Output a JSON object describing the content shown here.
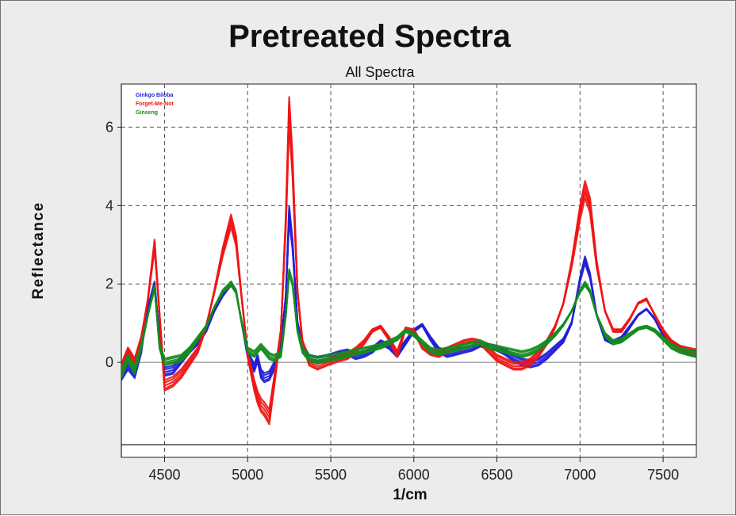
{
  "chart_data": {
    "type": "line",
    "title": "Pretreated Spectra",
    "subtitle": "All Spectra",
    "xlabel": "1/cm",
    "ylabel": "Reflectance",
    "xlim": [
      4240,
      7700
    ],
    "ylim": [
      -2.1,
      7.1
    ],
    "xticks": [
      4500,
      5000,
      5500,
      6000,
      6500,
      7000,
      7500
    ],
    "yticks": [
      0,
      2,
      4,
      6
    ],
    "grid": true,
    "legend_position": "top-left",
    "series": [
      {
        "name": "Ginkgo Biloba",
        "color": "#1f1fd6",
        "x": [
          4240,
          4280,
          4320,
          4360,
          4400,
          4440,
          4470,
          4500,
          4550,
          4600,
          4650,
          4700,
          4750,
          4800,
          4850,
          4900,
          4930,
          4960,
          5000,
          5040,
          5060,
          5080,
          5100,
          5130,
          5160,
          5200,
          5230,
          5250,
          5270,
          5300,
          5330,
          5370,
          5420,
          5480,
          5550,
          5600,
          5650,
          5700,
          5750,
          5800,
          5850,
          5900,
          5950,
          6000,
          6050,
          6100,
          6150,
          6200,
          6250,
          6300,
          6350,
          6400,
          6450,
          6500,
          6550,
          6600,
          6650,
          6700,
          6750,
          6800,
          6850,
          6900,
          6950,
          7000,
          7030,
          7060,
          7100,
          7150,
          7200,
          7250,
          7300,
          7350,
          7400,
          7450,
          7500,
          7550,
          7600,
          7650,
          7700
        ],
        "values": [
          -0.35,
          -0.1,
          -0.3,
          0.3,
          1.4,
          2.0,
          0.6,
          -0.25,
          -0.2,
          0.05,
          0.3,
          0.5,
          0.8,
          1.3,
          1.7,
          2.0,
          1.8,
          1.1,
          0.2,
          -0.15,
          0.1,
          -0.3,
          -0.4,
          -0.35,
          -0.1,
          0.4,
          1.7,
          3.8,
          3.0,
          1.0,
          0.4,
          0.1,
          0.05,
          0.1,
          0.2,
          0.25,
          0.15,
          0.2,
          0.3,
          0.5,
          0.4,
          0.2,
          0.5,
          0.8,
          0.95,
          0.6,
          0.3,
          0.2,
          0.25,
          0.3,
          0.35,
          0.45,
          0.4,
          0.35,
          0.25,
          0.1,
          0.0,
          -0.05,
          0.0,
          0.15,
          0.35,
          0.55,
          1.0,
          2.1,
          2.6,
          2.2,
          1.2,
          0.6,
          0.5,
          0.6,
          0.9,
          1.2,
          1.35,
          1.1,
          0.7,
          0.5,
          0.35,
          0.25,
          0.2
        ]
      },
      {
        "name": "Forget-Me-Not",
        "color": "#f01414",
        "x": [
          4240,
          4280,
          4320,
          4360,
          4400,
          4440,
          4470,
          4500,
          4550,
          4600,
          4650,
          4700,
          4750,
          4800,
          4850,
          4900,
          4930,
          4960,
          5000,
          5040,
          5060,
          5080,
          5100,
          5130,
          5160,
          5200,
          5230,
          5250,
          5270,
          5300,
          5330,
          5370,
          5420,
          5480,
          5550,
          5600,
          5650,
          5700,
          5750,
          5800,
          5850,
          5900,
          5950,
          6000,
          6050,
          6100,
          6150,
          6200,
          6250,
          6300,
          6350,
          6400,
          6450,
          6500,
          6550,
          6600,
          6650,
          6700,
          6750,
          6800,
          6850,
          6900,
          6950,
          7000,
          7030,
          7060,
          7100,
          7150,
          7200,
          7250,
          7300,
          7350,
          7400,
          7450,
          7500,
          7550,
          7600,
          7650,
          7700
        ],
        "values": [
          -0.15,
          0.3,
          0.0,
          0.6,
          1.6,
          3.0,
          1.2,
          -0.6,
          -0.5,
          -0.3,
          0.0,
          0.3,
          0.9,
          1.8,
          2.8,
          3.6,
          3.1,
          1.8,
          0.2,
          -0.6,
          -0.9,
          -1.1,
          -1.2,
          -1.4,
          -0.5,
          0.8,
          3.6,
          6.4,
          5.0,
          1.8,
          0.5,
          0.0,
          -0.1,
          0.0,
          0.1,
          0.15,
          0.3,
          0.5,
          0.8,
          0.9,
          0.6,
          0.2,
          0.85,
          0.8,
          0.4,
          0.25,
          0.2,
          0.3,
          0.4,
          0.5,
          0.55,
          0.5,
          0.3,
          0.1,
          0.0,
          -0.1,
          -0.1,
          0.0,
          0.2,
          0.5,
          0.9,
          1.5,
          2.5,
          3.8,
          4.4,
          4.0,
          2.5,
          1.3,
          0.8,
          0.8,
          1.1,
          1.5,
          1.6,
          1.2,
          0.8,
          0.5,
          0.35,
          0.3,
          0.25
        ]
      },
      {
        "name": "Ginseng",
        "color": "#148c1e",
        "x": [
          4240,
          4280,
          4320,
          4360,
          4400,
          4440,
          4470,
          4500,
          4550,
          4600,
          4650,
          4700,
          4750,
          4800,
          4850,
          4900,
          4930,
          4960,
          5000,
          5040,
          5060,
          5080,
          5100,
          5130,
          5160,
          5200,
          5230,
          5250,
          5270,
          5300,
          5330,
          5370,
          5420,
          5480,
          5550,
          5600,
          5650,
          5700,
          5750,
          5800,
          5850,
          5900,
          5950,
          6000,
          6050,
          6100,
          6150,
          6200,
          6250,
          6300,
          6350,
          6400,
          6450,
          6500,
          6550,
          6600,
          6650,
          6700,
          6750,
          6800,
          6850,
          6900,
          6950,
          7000,
          7030,
          7060,
          7100,
          7150,
          7200,
          7250,
          7300,
          7350,
          7400,
          7450,
          7500,
          7550,
          7600,
          7650,
          7700
        ],
        "values": [
          -0.3,
          0.1,
          -0.2,
          0.4,
          1.2,
          1.9,
          0.4,
          0.0,
          0.05,
          0.1,
          0.3,
          0.6,
          0.9,
          1.4,
          1.8,
          2.0,
          1.8,
          1.1,
          0.3,
          0.2,
          0.3,
          0.4,
          0.3,
          0.15,
          0.1,
          0.2,
          1.2,
          2.3,
          2.0,
          0.8,
          0.3,
          0.1,
          0.05,
          0.1,
          0.15,
          0.2,
          0.25,
          0.3,
          0.35,
          0.4,
          0.5,
          0.6,
          0.8,
          0.7,
          0.5,
          0.3,
          0.25,
          0.3,
          0.35,
          0.4,
          0.45,
          0.5,
          0.4,
          0.35,
          0.3,
          0.25,
          0.2,
          0.25,
          0.35,
          0.5,
          0.7,
          0.95,
          1.3,
          1.8,
          2.0,
          1.8,
          1.2,
          0.7,
          0.5,
          0.55,
          0.7,
          0.85,
          0.9,
          0.8,
          0.6,
          0.4,
          0.3,
          0.25,
          0.2
        ]
      }
    ]
  }
}
